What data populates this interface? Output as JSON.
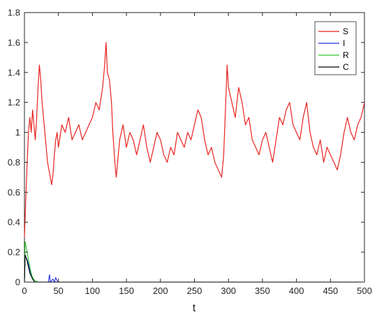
{
  "chart_data": {
    "type": "line",
    "title": "",
    "xlabel": "t",
    "ylabel": "",
    "xlim": [
      0,
      500
    ],
    "ylim": [
      0,
      1.8
    ],
    "x_ticks": [
      "0",
      "50",
      "100",
      "150",
      "200",
      "250",
      "300",
      "350",
      "400",
      "450",
      "500"
    ],
    "y_ticks": [
      "0",
      "0.2",
      "0.4",
      "0.6",
      "0.8",
      "1",
      "1.2",
      "1.4",
      "1.6",
      "1.8"
    ],
    "grid": false,
    "legend_position": "top-right",
    "series": [
      {
        "name": "S",
        "color": "#e8221e",
        "points": [
          [
            0,
            0.3
          ],
          [
            2,
            0.55
          ],
          [
            4,
            0.8
          ],
          [
            6,
            1.0
          ],
          [
            8,
            1.1
          ],
          [
            10,
            1.0
          ],
          [
            12,
            1.15
          ],
          [
            14,
            1.05
          ],
          [
            16,
            0.95
          ],
          [
            18,
            1.1
          ],
          [
            20,
            1.3
          ],
          [
            22,
            1.45
          ],
          [
            24,
            1.35
          ],
          [
            26,
            1.2
          ],
          [
            28,
            1.1
          ],
          [
            30,
            1.0
          ],
          [
            32,
            0.9
          ],
          [
            34,
            0.8
          ],
          [
            36,
            0.75
          ],
          [
            38,
            0.7
          ],
          [
            40,
            0.65
          ],
          [
            42,
            0.72
          ],
          [
            44,
            0.85
          ],
          [
            46,
            0.95
          ],
          [
            48,
            1.0
          ],
          [
            50,
            0.9
          ],
          [
            55,
            1.05
          ],
          [
            60,
            1.0
          ],
          [
            65,
            1.1
          ],
          [
            70,
            0.95
          ],
          [
            75,
            1.0
          ],
          [
            80,
            1.05
          ],
          [
            85,
            0.95
          ],
          [
            90,
            1.0
          ],
          [
            95,
            1.05
          ],
          [
            100,
            1.1
          ],
          [
            105,
            1.2
          ],
          [
            110,
            1.15
          ],
          [
            115,
            1.3
          ],
          [
            118,
            1.45
          ],
          [
            120,
            1.6
          ],
          [
            122,
            1.4
          ],
          [
            125,
            1.35
          ],
          [
            128,
            1.2
          ],
          [
            130,
            1.0
          ],
          [
            133,
            0.8
          ],
          [
            135,
            0.7
          ],
          [
            138,
            0.85
          ],
          [
            140,
            0.95
          ],
          [
            145,
            1.05
          ],
          [
            150,
            0.9
          ],
          [
            155,
            1.0
          ],
          [
            160,
            0.95
          ],
          [
            165,
            0.85
          ],
          [
            170,
            0.95
          ],
          [
            175,
            1.05
          ],
          [
            180,
            0.9
          ],
          [
            185,
            0.8
          ],
          [
            190,
            0.9
          ],
          [
            195,
            1.0
          ],
          [
            200,
            0.95
          ],
          [
            205,
            0.85
          ],
          [
            210,
            0.8
          ],
          [
            215,
            0.9
          ],
          [
            220,
            0.85
          ],
          [
            225,
            1.0
          ],
          [
            230,
            0.95
          ],
          [
            235,
            0.9
          ],
          [
            240,
            1.0
          ],
          [
            245,
            0.95
          ],
          [
            250,
            1.05
          ],
          [
            255,
            1.15
          ],
          [
            260,
            1.1
          ],
          [
            265,
            0.95
          ],
          [
            270,
            0.85
          ],
          [
            275,
            0.9
          ],
          [
            280,
            0.8
          ],
          [
            285,
            0.75
          ],
          [
            290,
            0.7
          ],
          [
            293,
            0.85
          ],
          [
            296,
            1.2
          ],
          [
            298,
            1.45
          ],
          [
            300,
            1.3
          ],
          [
            305,
            1.2
          ],
          [
            310,
            1.1
          ],
          [
            315,
            1.3
          ],
          [
            320,
            1.2
          ],
          [
            325,
            1.05
          ],
          [
            330,
            1.1
          ],
          [
            335,
            0.95
          ],
          [
            340,
            0.9
          ],
          [
            345,
            0.85
          ],
          [
            350,
            0.95
          ],
          [
            355,
            1.0
          ],
          [
            360,
            0.9
          ],
          [
            365,
            0.8
          ],
          [
            370,
            0.95
          ],
          [
            375,
            1.1
          ],
          [
            380,
            1.05
          ],
          [
            385,
            1.15
          ],
          [
            390,
            1.2
          ],
          [
            395,
            1.05
          ],
          [
            400,
            1.0
          ],
          [
            405,
            0.95
          ],
          [
            410,
            1.1
          ],
          [
            415,
            1.2
          ],
          [
            420,
            1.0
          ],
          [
            425,
            0.9
          ],
          [
            430,
            0.85
          ],
          [
            435,
            0.95
          ],
          [
            440,
            0.8
          ],
          [
            445,
            0.9
          ],
          [
            450,
            0.85
          ],
          [
            455,
            0.8
          ],
          [
            460,
            0.75
          ],
          [
            465,
            0.85
          ],
          [
            470,
            1.0
          ],
          [
            475,
            1.1
          ],
          [
            480,
            1.0
          ],
          [
            485,
            0.95
          ],
          [
            490,
            1.05
          ],
          [
            495,
            1.1
          ],
          [
            500,
            1.2
          ]
        ]
      },
      {
        "name": "I",
        "color": "#1f2fe0",
        "points": [
          [
            0,
            0.0
          ],
          [
            1,
            0.18
          ],
          [
            2,
            0.17
          ],
          [
            4,
            0.15
          ],
          [
            6,
            0.12
          ],
          [
            8,
            0.08
          ],
          [
            10,
            0.05
          ],
          [
            12,
            0.03
          ],
          [
            15,
            0.01
          ],
          [
            20,
            0.0
          ],
          [
            35,
            0.0
          ],
          [
            37,
            0.05
          ],
          [
            38,
            0.0
          ],
          [
            42,
            0.02
          ],
          [
            44,
            0.0
          ],
          [
            46,
            0.03
          ],
          [
            48,
            0.01
          ],
          [
            50,
            0.0
          ],
          [
            500,
            0.0
          ]
        ]
      },
      {
        "name": "R",
        "color": "#2ec82e",
        "points": [
          [
            0,
            0.0
          ],
          [
            1,
            0.27
          ],
          [
            2,
            0.25
          ],
          [
            4,
            0.2
          ],
          [
            6,
            0.15
          ],
          [
            8,
            0.1
          ],
          [
            10,
            0.06
          ],
          [
            12,
            0.03
          ],
          [
            15,
            0.01
          ],
          [
            20,
            0.0
          ],
          [
            500,
            0.0
          ]
        ]
      },
      {
        "name": "C",
        "color": "#000000",
        "points": [
          [
            0,
            0.0
          ],
          [
            1,
            0.18
          ],
          [
            2,
            0.17
          ],
          [
            4,
            0.14
          ],
          [
            6,
            0.1
          ],
          [
            8,
            0.06
          ],
          [
            10,
            0.04
          ],
          [
            12,
            0.02
          ],
          [
            15,
            0.0
          ],
          [
            500,
            0.0
          ]
        ]
      }
    ]
  }
}
